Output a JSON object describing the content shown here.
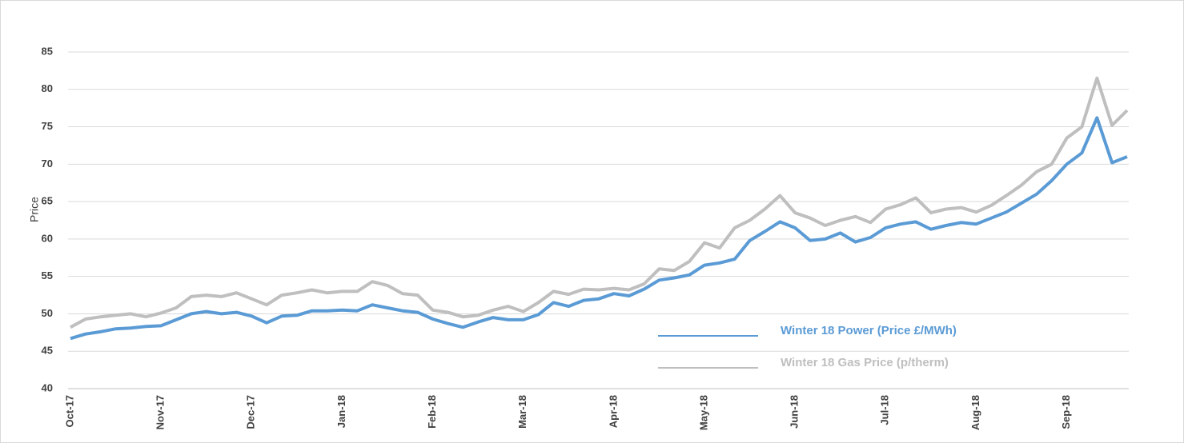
{
  "chart_data": {
    "type": "line",
    "y_label": "Price",
    "categories": [
      "Oct-17",
      null,
      null,
      null,
      null,
      null,
      "Nov-17",
      null,
      null,
      null,
      null,
      null,
      "Dec-17",
      null,
      null,
      null,
      null,
      null,
      "Jan-18",
      null,
      null,
      null,
      null,
      null,
      "Feb-18",
      null,
      null,
      null,
      null,
      null,
      "Mar-18",
      null,
      null,
      null,
      null,
      null,
      "Apr-18",
      null,
      null,
      null,
      null,
      null,
      "May-18",
      null,
      null,
      null,
      null,
      null,
      "Jun-18",
      null,
      null,
      null,
      null,
      null,
      "Jul-18",
      null,
      null,
      null,
      null,
      null,
      "Aug-18",
      null,
      null,
      null,
      null,
      null,
      "Sep-18",
      null,
      null,
      null,
      null
    ],
    "series": [
      {
        "name": "Winter 18 Power (Price £/MWh)",
        "color": "#5b9bd5",
        "values": [
          46.7,
          47.3,
          47.6,
          48.0,
          48.1,
          48.3,
          48.4,
          49.2,
          50.0,
          50.3,
          50.0,
          50.2,
          49.7,
          48.8,
          49.7,
          49.8,
          50.4,
          50.4,
          50.5,
          50.4,
          51.2,
          50.8,
          50.4,
          50.2,
          49.3,
          48.7,
          48.2,
          48.9,
          49.5,
          49.2,
          49.2,
          49.9,
          51.5,
          51.0,
          51.8,
          52.0,
          52.7,
          52.4,
          53.3,
          54.5,
          54.8,
          55.2,
          56.5,
          56.8,
          57.3,
          59.8,
          61.0,
          62.3,
          61.5,
          59.8,
          60.0,
          60.8,
          59.6,
          60.2,
          61.5,
          62.0,
          62.3,
          61.3,
          61.8,
          62.2,
          62.0,
          62.8,
          63.6,
          64.8,
          66.0,
          67.8,
          70.0,
          71.5,
          76.2,
          70.2,
          71.0
        ]
      },
      {
        "name": "Winter 18 Gas Price (p/therm)",
        "color": "#bfbfbf",
        "values": [
          48.2,
          49.3,
          49.6,
          49.8,
          50.0,
          49.6,
          50.1,
          50.8,
          52.3,
          52.5,
          52.3,
          52.8,
          52.0,
          51.2,
          52.5,
          52.8,
          53.2,
          52.8,
          53.0,
          53.0,
          54.3,
          53.8,
          52.7,
          52.5,
          50.5,
          50.2,
          49.6,
          49.8,
          50.5,
          51.0,
          50.3,
          51.5,
          53.0,
          52.6,
          53.3,
          53.2,
          53.4,
          53.2,
          54.0,
          56.0,
          55.8,
          57.0,
          59.5,
          58.8,
          61.5,
          62.5,
          64.0,
          65.8,
          63.5,
          62.8,
          61.8,
          62.5,
          63.0,
          62.2,
          64.0,
          64.6,
          65.5,
          63.5,
          64.0,
          64.2,
          63.6,
          64.5,
          65.8,
          67.2,
          69.0,
          70.0,
          73.5,
          75.0,
          81.5,
          75.2,
          77.2
        ]
      }
    ],
    "ylim": [
      40,
      85
    ],
    "yticks": [
      40,
      45,
      50,
      55,
      60,
      65,
      70,
      75,
      80,
      85
    ],
    "grid": true
  }
}
